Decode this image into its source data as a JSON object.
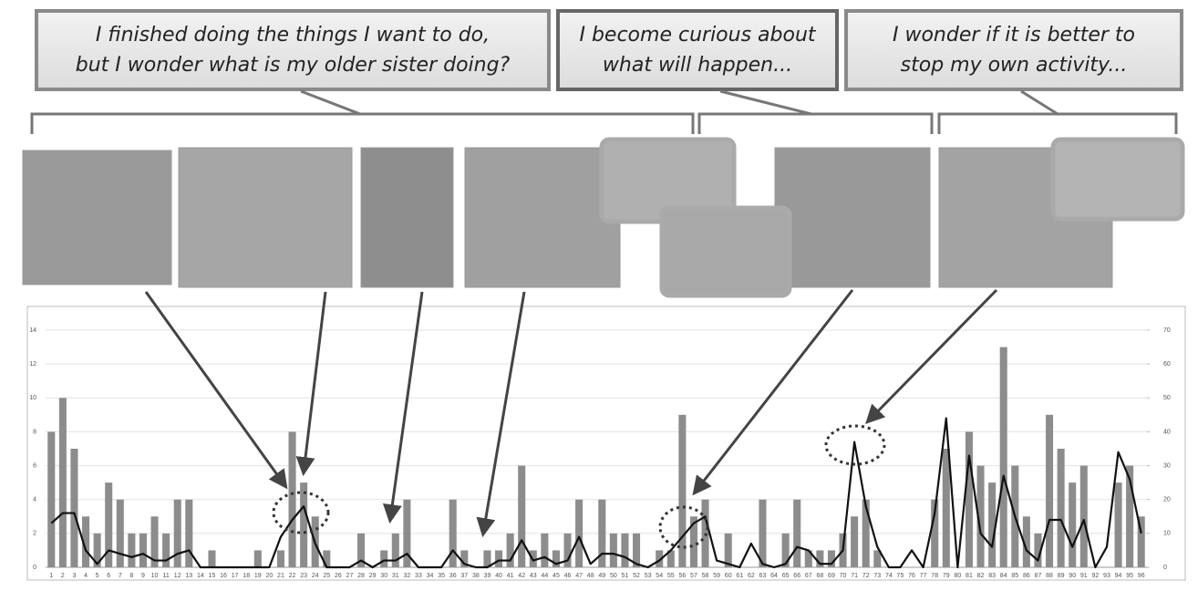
{
  "callouts": [
    {
      "lines": [
        "I finished doing the things I want to do,",
        "but I wonder what is my older sister doing?"
      ]
    },
    {
      "lines": [
        "I become curious about",
        "what will happen..."
      ]
    },
    {
      "lines": [
        "I wonder if it is better to",
        "stop my own activity..."
      ]
    }
  ],
  "chart_data": {
    "type": "bar-line",
    "categories": [
      1,
      2,
      3,
      4,
      5,
      6,
      7,
      8,
      9,
      10,
      11,
      12,
      13,
      14,
      15,
      16,
      17,
      18,
      19,
      20,
      21,
      22,
      23,
      24,
      25,
      26,
      27,
      28,
      29,
      30,
      31,
      32,
      33,
      34,
      35,
      36,
      37,
      38,
      39,
      40,
      41,
      42,
      43,
      44,
      45,
      46,
      47,
      48,
      49,
      50,
      51,
      52,
      53,
      54,
      55,
      56,
      57,
      58,
      59,
      60,
      61,
      62,
      63,
      64,
      65,
      66,
      67,
      68,
      69,
      70,
      71,
      72,
      73,
      74,
      75,
      76,
      77,
      78,
      79,
      80,
      81,
      82,
      83,
      84,
      85,
      86,
      87,
      88,
      89,
      90,
      91,
      92,
      93,
      94,
      95,
      96
    ],
    "series": [
      {
        "type": "bar",
        "color": "#8c8c8c",
        "values": [
          8,
          10,
          7,
          3,
          2,
          5,
          4,
          2,
          2,
          3,
          2,
          4,
          4,
          0,
          1,
          0,
          0,
          0,
          1,
          0,
          1,
          8,
          5,
          3,
          1,
          0,
          0,
          2,
          0,
          1,
          2,
          4,
          0,
          0,
          0,
          4,
          1,
          0,
          1,
          1,
          2,
          6,
          1,
          2,
          1,
          2,
          4,
          0,
          4,
          2,
          2,
          2,
          0,
          1,
          1,
          9,
          3,
          4,
          0,
          2,
          0,
          0,
          4,
          0,
          2,
          4,
          1,
          1,
          1,
          2,
          3,
          4,
          1,
          0,
          0,
          0,
          0,
          4,
          7,
          0,
          8,
          6,
          5,
          13,
          6,
          3,
          2,
          9,
          7,
          5,
          6,
          0,
          0,
          5,
          6,
          3
        ]
      },
      {
        "type": "line",
        "axis": "y2",
        "color": "#111111",
        "values": [
          13,
          16,
          16,
          5,
          1,
          5,
          4,
          3,
          4,
          2,
          2,
          4,
          5,
          0,
          0,
          0,
          0,
          0,
          0,
          0,
          9,
          14,
          18,
          7,
          0,
          0,
          0,
          2,
          0,
          2,
          2,
          4,
          0,
          0,
          0,
          5,
          1,
          0,
          0,
          2,
          2,
          8,
          2,
          3,
          1,
          2,
          9,
          1,
          4,
          4,
          3,
          1,
          0,
          2,
          5,
          9,
          13,
          15,
          2,
          1,
          0,
          7,
          1,
          0,
          1,
          6,
          5,
          1,
          1,
          5,
          37,
          18,
          6,
          0,
          0,
          5,
          0,
          16,
          44,
          0,
          33,
          10,
          6,
          27,
          15,
          5,
          2,
          14,
          14,
          6,
          14,
          0,
          6,
          34,
          26,
          10
        ]
      }
    ],
    "ylim": [
      0,
      14
    ],
    "yticks": [
      0,
      2,
      4,
      6,
      8,
      10,
      12,
      14
    ],
    "y2lim": [
      0,
      70
    ],
    "y2ticks": [
      0,
      10,
      20,
      30,
      40,
      50,
      60,
      70
    ],
    "grid": true
  }
}
